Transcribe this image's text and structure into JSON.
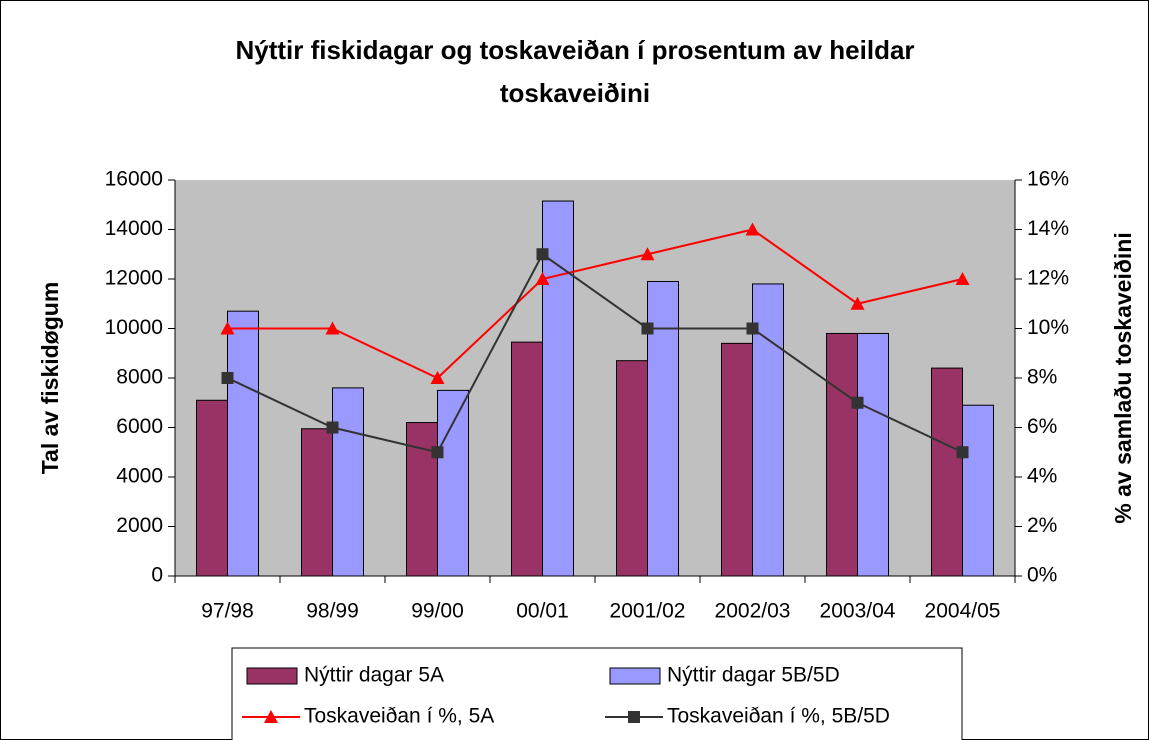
{
  "chart_data": {
    "type": "bar",
    "title": "Nýttir fiskidagar og toskaveiðan í prosentum av heildar toskaveiðini",
    "y_label": "Tal av fiskidøgum",
    "y2_label": "% av samlaðu toskaveiðini",
    "categories": [
      "97/98",
      "98/99",
      "99/00",
      "00/01",
      "2001/02",
      "2002/03",
      "2003/04",
      "2004/05"
    ],
    "series": [
      {
        "name": "Nýttir dagar 5A",
        "type": "bar",
        "color": "#993366",
        "values": [
          7100,
          5950,
          6200,
          9450,
          8700,
          9400,
          9800,
          8400
        ]
      },
      {
        "name": "Nýttir dagar 5B/5D",
        "type": "bar",
        "color": "#9999ff",
        "values": [
          10700,
          7600,
          7500,
          15150,
          11900,
          11800,
          9800,
          6900
        ]
      },
      {
        "name": "Toskaveiðan í %, 5A",
        "type": "line",
        "marker": "triangle",
        "axis": "y2",
        "color": "#ff0000",
        "values": [
          10,
          10,
          8,
          12,
          13,
          14,
          11,
          12
        ]
      },
      {
        "name": "Toskaveiðan í %, 5B/5D",
        "type": "line",
        "marker": "square",
        "axis": "y2",
        "color": "#333333",
        "values": [
          8,
          6,
          5,
          13,
          10,
          10,
          7,
          5
        ]
      }
    ],
    "ylim": [
      0,
      16000
    ],
    "yticks": [
      0,
      2000,
      4000,
      6000,
      8000,
      10000,
      12000,
      14000,
      16000
    ],
    "y2lim": [
      0,
      16
    ],
    "y2ticks": [
      {
        "value": 0,
        "label": "0%"
      },
      {
        "value": 2,
        "label": "2%"
      },
      {
        "value": 4,
        "label": "4%"
      },
      {
        "value": 6,
        "label": "6%"
      },
      {
        "value": 8,
        "label": "8%"
      },
      {
        "value": 10,
        "label": "10%"
      },
      {
        "value": 12,
        "label": "12%"
      },
      {
        "value": 14,
        "label": "14%"
      },
      {
        "value": 16,
        "label": "16%"
      }
    ],
    "legend": "bottom",
    "plot_background": "#c0c0c0"
  }
}
